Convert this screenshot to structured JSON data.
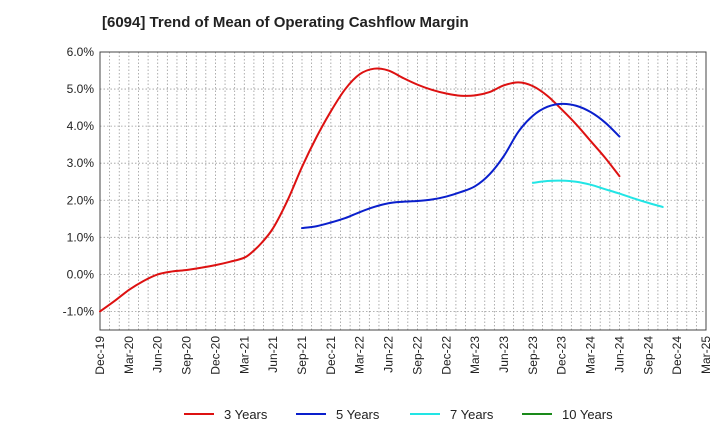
{
  "chart_data": {
    "type": "line",
    "title": "[6094]  Trend of Mean of Operating Cashflow Margin",
    "xlabel": "",
    "ylabel": "",
    "x": [
      "Dec-19",
      "Mar-20",
      "Jun-20",
      "Sep-20",
      "Dec-20",
      "Mar-21",
      "Jun-21",
      "Sep-21",
      "Dec-21",
      "Mar-22",
      "Jun-22",
      "Sep-22",
      "Dec-22",
      "Mar-23",
      "Jun-23",
      "Sep-23",
      "Dec-23",
      "Mar-24",
      "Jun-24",
      "Sep-24",
      "Dec-24",
      "Mar-25"
    ],
    "y_ticks": [
      "6.0%",
      "5.0%",
      "4.0%",
      "3.0%",
      "2.0%",
      "1.0%",
      "0.0%",
      "-1.0%"
    ],
    "y_tick_values": [
      6,
      5,
      4,
      3,
      2,
      1,
      0,
      -1
    ],
    "ylim": [
      -1.5,
      6.0
    ],
    "grid": true,
    "legend_position": "bottom",
    "series": [
      {
        "name": "3 Years",
        "color": "#dd1111",
        "points": [
          [
            0,
            -1.0
          ],
          [
            0.5,
            -0.72
          ],
          [
            1,
            -0.42
          ],
          [
            1.5,
            -0.18
          ],
          [
            2,
            0.0
          ],
          [
            2.5,
            0.08
          ],
          [
            3,
            0.12
          ],
          [
            3.5,
            0.18
          ],
          [
            4,
            0.25
          ],
          [
            4.5,
            0.34
          ],
          [
            5,
            0.45
          ],
          [
            5.3,
            0.62
          ],
          [
            5.6,
            0.85
          ],
          [
            6,
            1.25
          ],
          [
            6.5,
            2.0
          ],
          [
            7,
            2.9
          ],
          [
            7.5,
            3.7
          ],
          [
            8,
            4.4
          ],
          [
            8.5,
            5.0
          ],
          [
            9,
            5.4
          ],
          [
            9.5,
            5.55
          ],
          [
            10,
            5.5
          ],
          [
            10.5,
            5.3
          ],
          [
            11,
            5.12
          ],
          [
            11.5,
            4.98
          ],
          [
            12,
            4.88
          ],
          [
            12.5,
            4.82
          ],
          [
            13,
            4.83
          ],
          [
            13.5,
            4.92
          ],
          [
            14,
            5.1
          ],
          [
            14.5,
            5.18
          ],
          [
            15,
            5.08
          ],
          [
            15.5,
            4.82
          ],
          [
            16,
            4.45
          ],
          [
            16.5,
            4.05
          ],
          [
            17,
            3.6
          ],
          [
            17.5,
            3.15
          ],
          [
            18,
            2.65
          ]
        ]
      },
      {
        "name": "5 Years",
        "color": "#0a1fcc",
        "points": [
          [
            7,
            1.25
          ],
          [
            7.5,
            1.3
          ],
          [
            8,
            1.4
          ],
          [
            8.5,
            1.52
          ],
          [
            9,
            1.68
          ],
          [
            9.5,
            1.82
          ],
          [
            10,
            1.92
          ],
          [
            10.5,
            1.96
          ],
          [
            11,
            1.98
          ],
          [
            11.5,
            2.02
          ],
          [
            12,
            2.1
          ],
          [
            12.5,
            2.22
          ],
          [
            13,
            2.38
          ],
          [
            13.5,
            2.7
          ],
          [
            14,
            3.2
          ],
          [
            14.5,
            3.85
          ],
          [
            15,
            4.28
          ],
          [
            15.5,
            4.52
          ],
          [
            16,
            4.6
          ],
          [
            16.5,
            4.55
          ],
          [
            17,
            4.38
          ],
          [
            17.5,
            4.1
          ],
          [
            18,
            3.72
          ]
        ]
      },
      {
        "name": "7 Years",
        "color": "#22e5e5",
        "points": [
          [
            15,
            2.47
          ],
          [
            15.5,
            2.52
          ],
          [
            16,
            2.53
          ],
          [
            16.5,
            2.5
          ],
          [
            17,
            2.42
          ],
          [
            17.5,
            2.3
          ],
          [
            18,
            2.18
          ],
          [
            18.5,
            2.05
          ],
          [
            19,
            1.93
          ],
          [
            19.5,
            1.82
          ]
        ]
      },
      {
        "name": "10 Years",
        "color": "#1a8a1a",
        "points": []
      }
    ]
  }
}
